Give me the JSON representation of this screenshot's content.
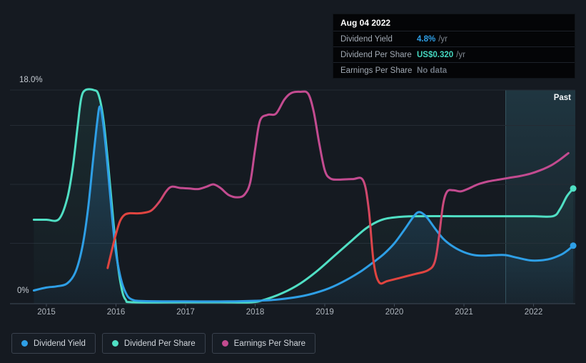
{
  "tooltip": {
    "date": "Aug 04 2022",
    "rows": [
      {
        "label": "Dividend Yield",
        "value": "4.8%",
        "suffix": "/yr",
        "value_color": "#2e9fe6"
      },
      {
        "label": "Dividend Per Share",
        "value": "US$0.320",
        "suffix": "/yr",
        "value_color": "#45d8c0"
      },
      {
        "label": "Earnings Per Share",
        "value": "No data",
        "suffix": "",
        "value_color": "#6e7680"
      }
    ]
  },
  "legend": {
    "items": [
      {
        "label": "Dividend Yield",
        "color": "#2e9fe6"
      },
      {
        "label": "Dividend Per Share",
        "color": "#50dfc4"
      },
      {
        "label": "Earnings Per Share",
        "color": "#c34b90"
      }
    ]
  },
  "chart_data": {
    "type": "line",
    "title": "Dividend history: dividend yield, dividend per share and earnings per share over time",
    "x_axis": {
      "ticks": [
        2015,
        2016,
        2017,
        2018,
        2019,
        2020,
        2021,
        2022
      ],
      "min": 2014.82,
      "max": 2022.6
    },
    "y_axis": {
      "unit": "%",
      "min": 0,
      "max": 18,
      "label_top": "18.0%",
      "label_bottom": "0%",
      "gridlines_pct": [
        5,
        10,
        15,
        18
      ],
      "grid": true
    },
    "past_region": {
      "label": "Past",
      "start_year": 2021.6,
      "end_year": 2022.6
    },
    "legend_position": "bottom-left",
    "series": [
      {
        "name": "Dividend Per Share",
        "color": "#50dfc4",
        "fill_top": "rgba(80,223,196,0.09)",
        "fill_bottom": "rgba(80,223,196,0.01)",
        "end_dot": true,
        "points": [
          [
            2014.82,
            7.0
          ],
          [
            2015.0,
            7.0
          ],
          [
            2015.18,
            7.05
          ],
          [
            2015.3,
            8.8
          ],
          [
            2015.38,
            11.5
          ],
          [
            2015.45,
            15.0
          ],
          [
            2015.5,
            17.3
          ],
          [
            2015.56,
            18.0
          ],
          [
            2015.68,
            18.0
          ],
          [
            2015.75,
            17.6
          ],
          [
            2015.82,
            15.5
          ],
          [
            2015.89,
            11.5
          ],
          [
            2015.96,
            7.0
          ],
          [
            2016.02,
            3.5
          ],
          [
            2016.08,
            1.2
          ],
          [
            2016.14,
            0.2
          ],
          [
            2016.25,
            0.0
          ],
          [
            2017.0,
            0.0
          ],
          [
            2017.5,
            0.0
          ],
          [
            2017.95,
            0.0
          ],
          [
            2018.15,
            0.25
          ],
          [
            2018.4,
            0.8
          ],
          [
            2018.65,
            1.6
          ],
          [
            2018.9,
            2.7
          ],
          [
            2019.15,
            4.0
          ],
          [
            2019.4,
            5.3
          ],
          [
            2019.6,
            6.3
          ],
          [
            2019.8,
            6.95
          ],
          [
            2020.0,
            7.2
          ],
          [
            2020.3,
            7.3
          ],
          [
            2021.0,
            7.3
          ],
          [
            2021.6,
            7.3
          ],
          [
            2022.0,
            7.3
          ],
          [
            2022.28,
            7.3
          ],
          [
            2022.38,
            7.9
          ],
          [
            2022.48,
            9.0
          ],
          [
            2022.57,
            9.65
          ]
        ]
      },
      {
        "name": "Dividend Yield",
        "color": "#2e9fe6",
        "fill_top": "rgba(52,150,220,0.30)",
        "fill_bottom": "rgba(52,150,220,0.04)",
        "end_dot": true,
        "points": [
          [
            2014.82,
            1.0
          ],
          [
            2015.0,
            1.25
          ],
          [
            2015.15,
            1.35
          ],
          [
            2015.3,
            1.6
          ],
          [
            2015.42,
            2.6
          ],
          [
            2015.52,
            4.8
          ],
          [
            2015.6,
            8.0
          ],
          [
            2015.67,
            12.0
          ],
          [
            2015.73,
            15.3
          ],
          [
            2015.77,
            16.6
          ],
          [
            2015.82,
            15.0
          ],
          [
            2015.88,
            11.5
          ],
          [
            2015.94,
            7.5
          ],
          [
            2016.0,
            4.2
          ],
          [
            2016.07,
            2.0
          ],
          [
            2016.14,
            0.8
          ],
          [
            2016.22,
            0.25
          ],
          [
            2016.4,
            0.1
          ],
          [
            2017.0,
            0.07
          ],
          [
            2017.6,
            0.07
          ],
          [
            2018.0,
            0.12
          ],
          [
            2018.35,
            0.25
          ],
          [
            2018.7,
            0.55
          ],
          [
            2019.0,
            1.05
          ],
          [
            2019.25,
            1.7
          ],
          [
            2019.5,
            2.55
          ],
          [
            2019.7,
            3.4
          ],
          [
            2019.85,
            4.1
          ],
          [
            2020.0,
            5.0
          ],
          [
            2020.15,
            6.2
          ],
          [
            2020.28,
            7.3
          ],
          [
            2020.36,
            7.65
          ],
          [
            2020.46,
            7.25
          ],
          [
            2020.58,
            6.3
          ],
          [
            2020.7,
            5.4
          ],
          [
            2020.85,
            4.7
          ],
          [
            2021.0,
            4.25
          ],
          [
            2021.15,
            4.0
          ],
          [
            2021.3,
            3.95
          ],
          [
            2021.45,
            4.0
          ],
          [
            2021.6,
            4.0
          ],
          [
            2021.75,
            3.8
          ],
          [
            2021.95,
            3.55
          ],
          [
            2022.1,
            3.55
          ],
          [
            2022.25,
            3.7
          ],
          [
            2022.4,
            4.05
          ],
          [
            2022.5,
            4.45
          ],
          [
            2022.57,
            4.8
          ]
        ]
      },
      {
        "name": "Earnings Per Share",
        "color": "#c34b90",
        "color_negative": "#e0443f",
        "end_dot": false,
        "gradient_stops": [
          [
            2015.88,
            "#e0443f"
          ],
          [
            2016.45,
            "#e0443f"
          ],
          [
            2016.8,
            "#c34b90"
          ],
          [
            2019.53,
            "#c34b90"
          ],
          [
            2019.7,
            "#e0443f"
          ],
          [
            2020.52,
            "#e0443f"
          ],
          [
            2020.76,
            "#c34b90"
          ],
          [
            2022.5,
            "#c34b90"
          ]
        ],
        "points": [
          [
            2015.88,
            2.9
          ],
          [
            2015.94,
            4.4
          ],
          [
            2016.0,
            5.8
          ],
          [
            2016.06,
            6.9
          ],
          [
            2016.12,
            7.4
          ],
          [
            2016.2,
            7.55
          ],
          [
            2016.35,
            7.55
          ],
          [
            2016.5,
            7.75
          ],
          [
            2016.62,
            8.5
          ],
          [
            2016.72,
            9.4
          ],
          [
            2016.8,
            9.8
          ],
          [
            2016.92,
            9.7
          ],
          [
            2017.05,
            9.65
          ],
          [
            2017.18,
            9.6
          ],
          [
            2017.3,
            9.8
          ],
          [
            2017.4,
            10.0
          ],
          [
            2017.5,
            9.7
          ],
          [
            2017.62,
            9.1
          ],
          [
            2017.75,
            8.9
          ],
          [
            2017.85,
            9.15
          ],
          [
            2017.93,
            10.2
          ],
          [
            2018.0,
            13.0
          ],
          [
            2018.07,
            15.4
          ],
          [
            2018.18,
            15.9
          ],
          [
            2018.3,
            16.0
          ],
          [
            2018.42,
            17.2
          ],
          [
            2018.52,
            17.75
          ],
          [
            2018.65,
            17.85
          ],
          [
            2018.76,
            17.7
          ],
          [
            2018.84,
            16.2
          ],
          [
            2018.92,
            13.5
          ],
          [
            2019.0,
            11.2
          ],
          [
            2019.08,
            10.5
          ],
          [
            2019.2,
            10.4
          ],
          [
            2019.4,
            10.45
          ],
          [
            2019.55,
            10.35
          ],
          [
            2019.63,
            8.0
          ],
          [
            2019.7,
            3.5
          ],
          [
            2019.78,
            1.7
          ],
          [
            2019.9,
            1.8
          ],
          [
            2020.1,
            2.1
          ],
          [
            2020.3,
            2.4
          ],
          [
            2020.48,
            2.7
          ],
          [
            2020.58,
            3.4
          ],
          [
            2020.64,
            5.5
          ],
          [
            2020.7,
            8.3
          ],
          [
            2020.76,
            9.4
          ],
          [
            2020.85,
            9.5
          ],
          [
            2020.95,
            9.4
          ],
          [
            2021.05,
            9.6
          ],
          [
            2021.2,
            10.0
          ],
          [
            2021.35,
            10.25
          ],
          [
            2021.5,
            10.4
          ],
          [
            2021.65,
            10.55
          ],
          [
            2021.8,
            10.7
          ],
          [
            2021.95,
            10.9
          ],
          [
            2022.1,
            11.2
          ],
          [
            2022.25,
            11.6
          ],
          [
            2022.38,
            12.1
          ],
          [
            2022.5,
            12.65
          ]
        ]
      }
    ],
    "colors": {
      "background": "#151a21",
      "gridline": "#242b34",
      "axis": "#3f4956",
      "past_band_top": "rgba(72,165,190,0.20)",
      "past_band_bottom": "rgba(72,165,190,0.03)",
      "past_border": "rgba(130,200,220,0.28)"
    }
  }
}
